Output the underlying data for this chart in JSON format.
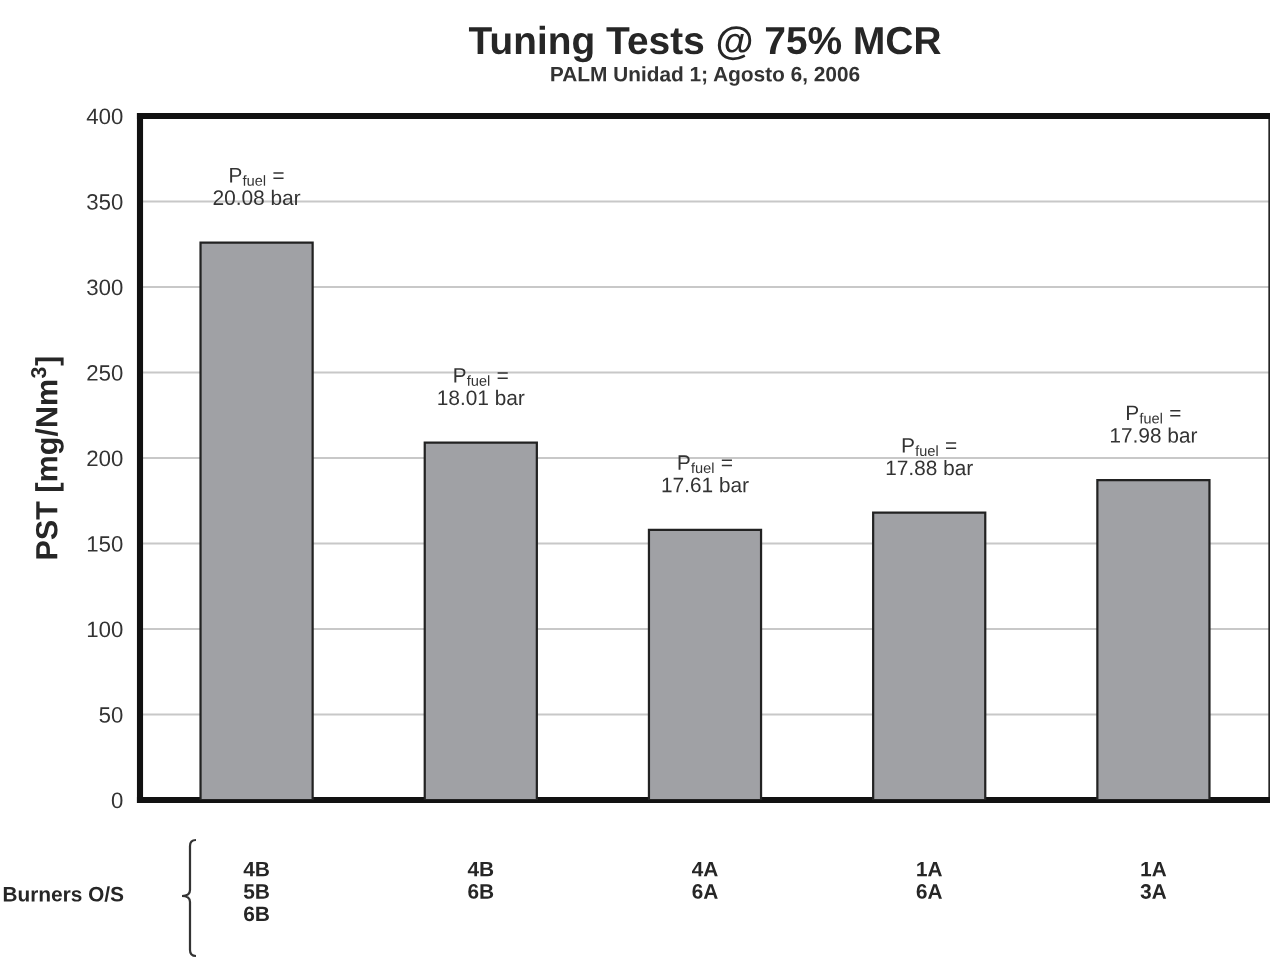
{
  "chart_data": {
    "type": "bar",
    "title": "Tuning Tests @ 75% MCR",
    "subtitle": "PALM Unidad 1; Agosto 6, 2006",
    "ylabel": "PST [mg/Nm$^{3}$]",
    "xlabel": "Burners O/S",
    "categories": [
      "4B\n5B\n6B",
      "4B\n6B",
      "4A\n6A",
      "1A\n6A",
      "1A\n3A"
    ],
    "values": [
      326,
      209,
      158,
      168,
      187
    ],
    "color": "#a0a1a5",
    "ylim": [
      0,
      400
    ],
    "yticks": [
      0,
      50,
      100,
      150,
      200,
      250,
      300,
      350,
      400
    ],
    "grid": "y",
    "annotations": [
      "P$_{fuel}$ =\n20.08 bar",
      "P$_{fuel}$ =\n18.01 bar",
      "P$_{fuel}$ =\n17.61 bar",
      "P$_{fuel}$ =\n17.88 bar",
      "P$_{fuel}$ =\n17.98 bar"
    ]
  }
}
